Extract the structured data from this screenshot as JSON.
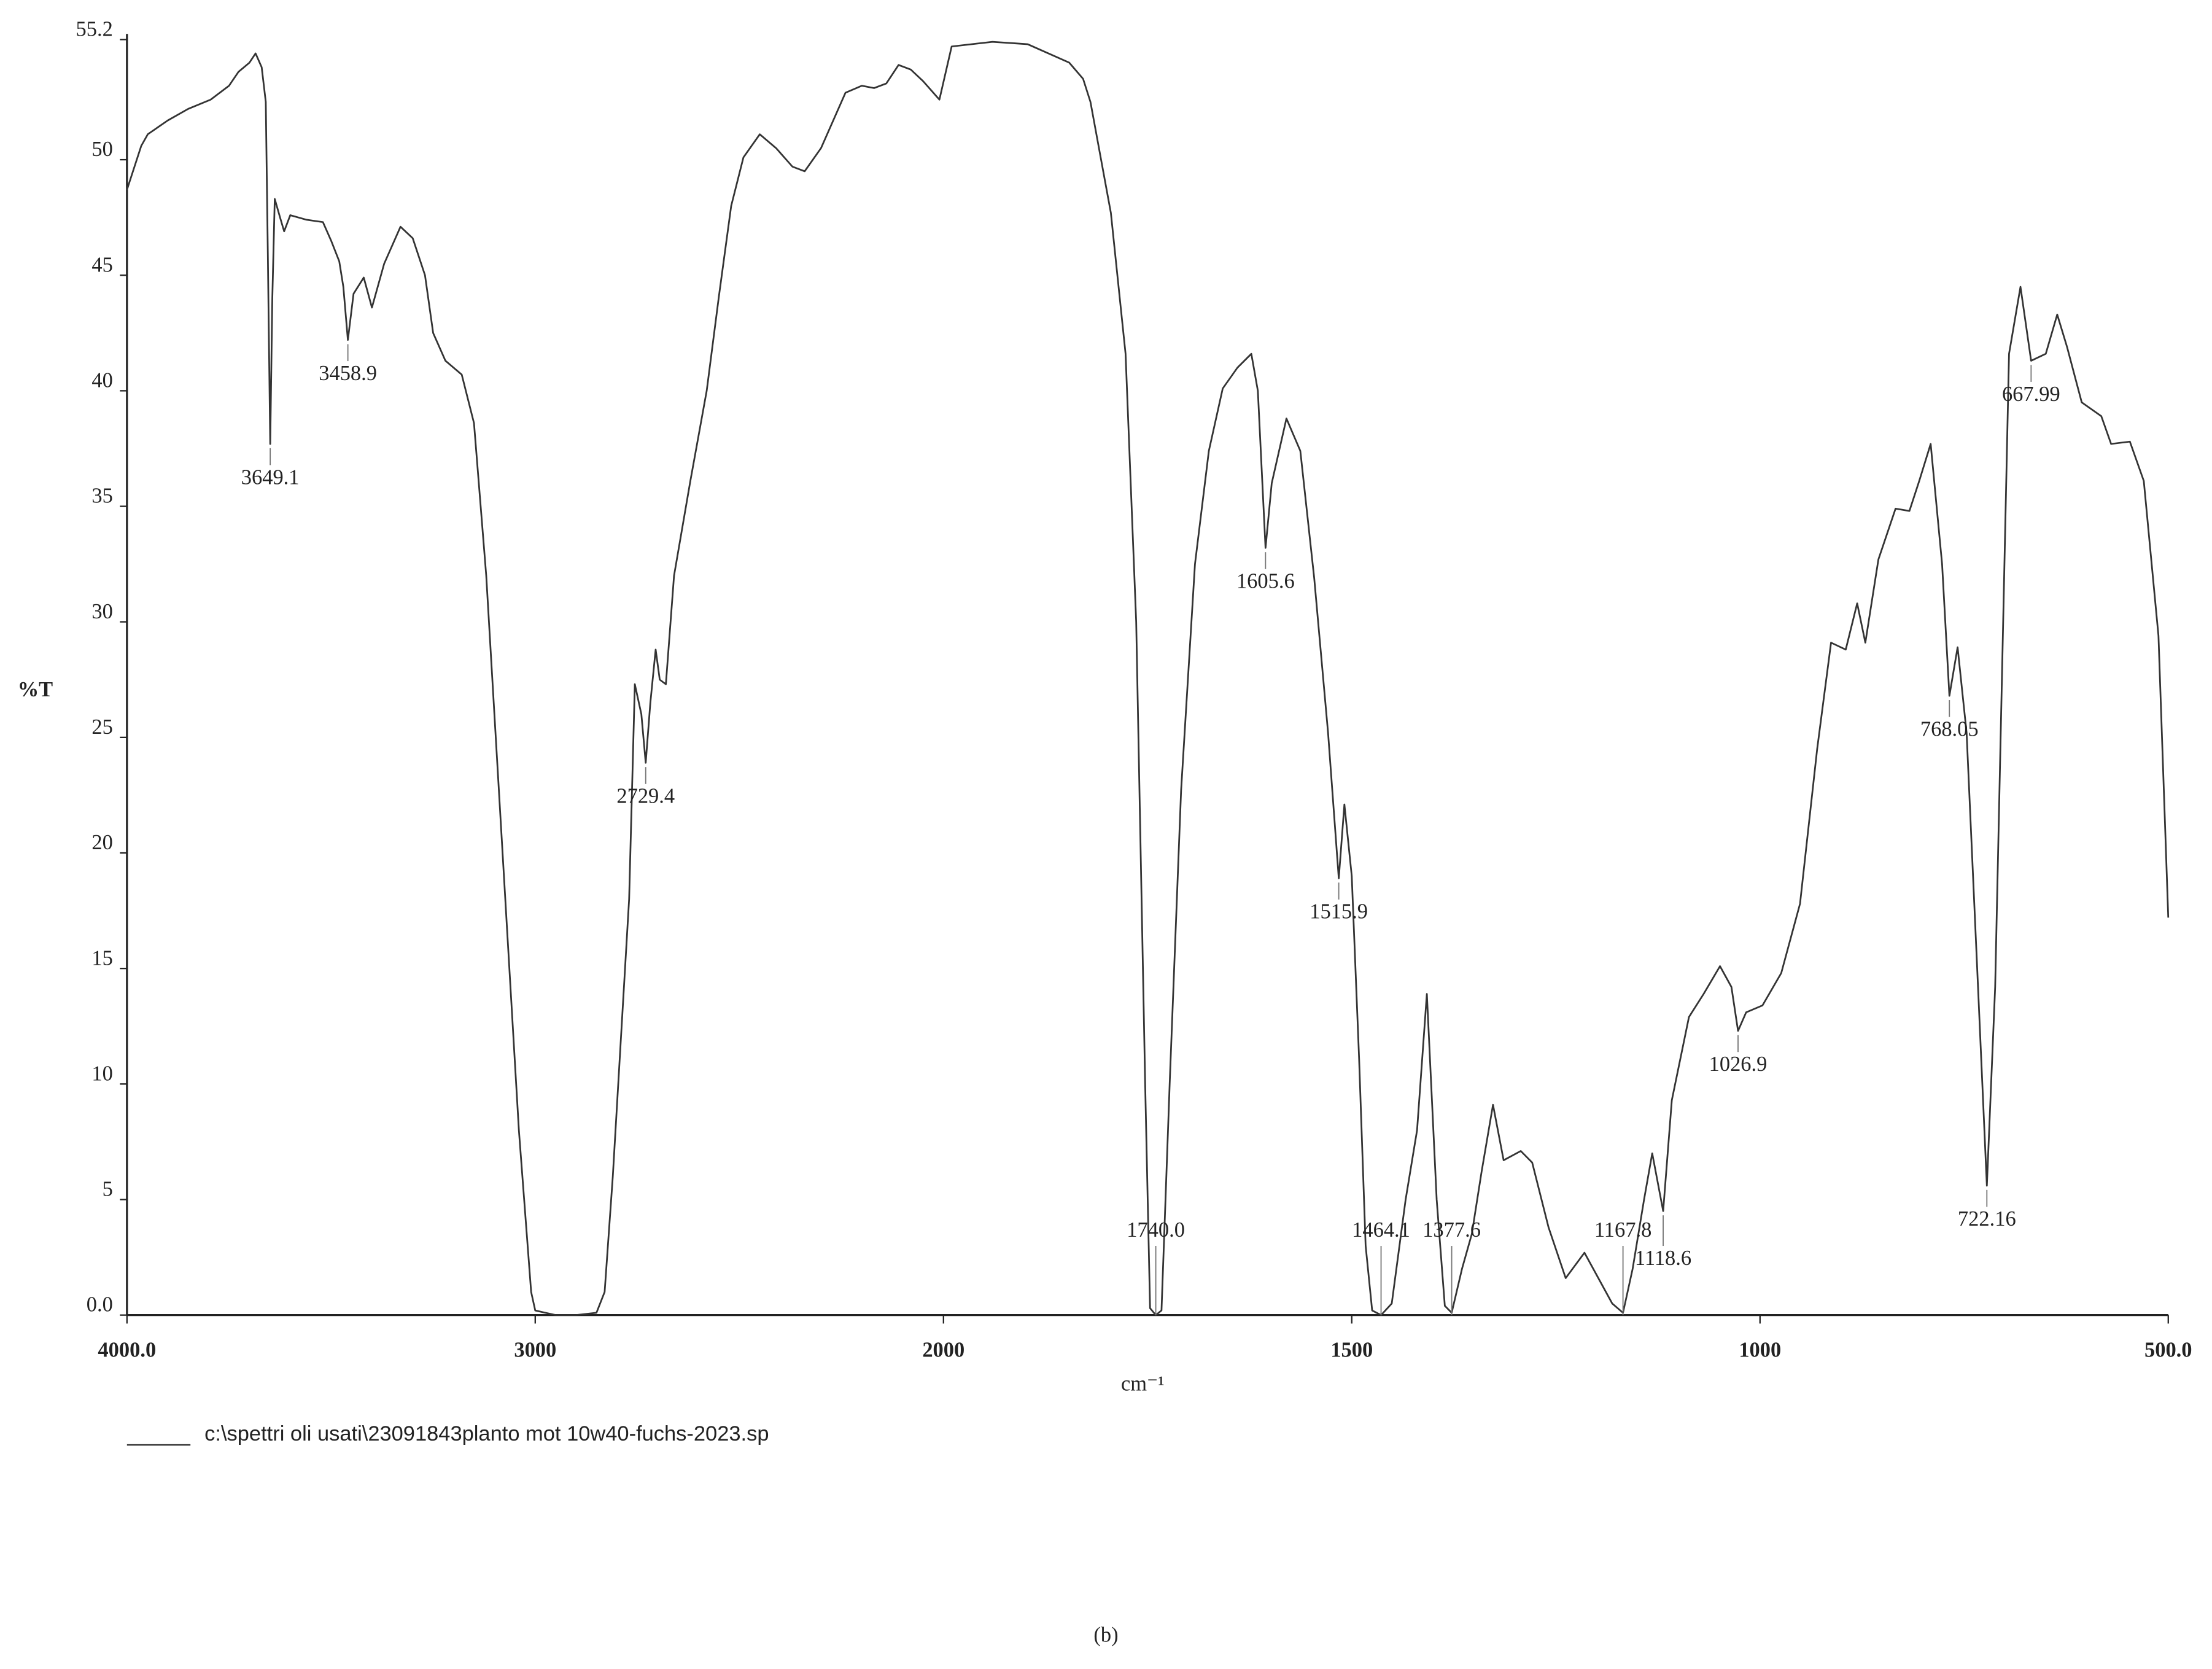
{
  "chart_data": {
    "type": "line",
    "y_label": "%T",
    "x_label": "cm⁻¹",
    "caption": "(b)",
    "xlim": [
      4000,
      500
    ],
    "ylim": [
      0,
      55.2
    ],
    "xticks": [
      {
        "value": 4000,
        "label": "4000.0"
      },
      3000,
      2000,
      1500,
      1000,
      {
        "value": 500,
        "label": "500.0"
      }
    ],
    "yticks": [
      {
        "value": 0,
        "label": "0.0"
      },
      5,
      10,
      15,
      20,
      25,
      30,
      35,
      40,
      45,
      50,
      55.2
    ],
    "peaks": [
      3649.1,
      3458.9,
      2729.4,
      {
        "value": 1740,
        "label": "1740.0"
      },
      1605.6,
      1515.9,
      1464.1,
      1377.6,
      1167.8,
      1118.6,
      1026.9,
      768.05,
      722.16,
      667.99
    ],
    "x": [
      4000,
      3965,
      3949,
      3900,
      3850,
      3795,
      3750,
      3727,
      3700,
      3685,
      3670,
      3660,
      3655,
      3649.1,
      3644,
      3638,
      3625,
      3615,
      3600,
      3560,
      3520,
      3500,
      3480,
      3470,
      3458.9,
      3445,
      3420,
      3400,
      3370,
      3330,
      3300,
      3270,
      3250,
      3220,
      3180,
      3150,
      3120,
      3080,
      3040,
      3010,
      3000,
      2950,
      2900,
      2850,
      2830,
      2810,
      2790,
      2770,
      2756,
      2740,
      2729.4,
      2718,
      2705,
      2695,
      2680,
      2660,
      2620,
      2580,
      2550,
      2520,
      2490,
      2450,
      2410,
      2370,
      2340,
      2300,
      2240,
      2200,
      2170,
      2140,
      2110,
      2080,
      2050,
      2030,
      2010,
      1990,
      1940,
      1897,
      1846,
      1829,
      1820,
      1795,
      1777,
      1764,
      1753,
      1747,
      1740,
      1733,
      1723,
      1709,
      1692,
      1675,
      1658,
      1640,
      1623,
      1615,
      1605.6,
      1598,
      1580,
      1563,
      1546,
      1529,
      1515.9,
      1509,
      1500,
      1491,
      1483,
      1475,
      1464.1,
      1451,
      1434,
      1420,
      1408,
      1396,
      1386,
      1377.6,
      1365,
      1353,
      1341,
      1327,
      1314,
      1293,
      1279,
      1259,
      1238,
      1215,
      1198,
      1181,
      1167.8,
      1156,
      1142,
      1132,
      1118.6,
      1108,
      1087,
      1069,
      1049,
      1035,
      1026.9,
      1017,
      997,
      974,
      951,
      930,
      913,
      895,
      881,
      871,
      855,
      834,
      817,
      805,
      791,
      777,
      768.05,
      758,
      747,
      733,
      722.16,
      712,
      695,
      681,
      667.99,
      650,
      636,
      624,
      606,
      582,
      570,
      547,
      530,
      512,
      500
    ],
    "series": [
      {
        "name": "c:\\spettri oli usati\\23091843planto mot 10w40-fuchs-2023.sp",
        "color": "#333333",
        "values": [
          48.7,
          50.6,
          51.1,
          51.7,
          52.2,
          52.6,
          53.2,
          53.8,
          54.2,
          54.6,
          54.0,
          52.5,
          46,
          37.7,
          44,
          48.3,
          47.5,
          46.9,
          47.6,
          47.4,
          47.3,
          46.5,
          45.6,
          44.5,
          42.2,
          44.2,
          44.9,
          43.6,
          45.5,
          47.1,
          46.6,
          45.0,
          42.5,
          41.3,
          40.7,
          38.6,
          32,
          20,
          8,
          1,
          0.2,
          0,
          0,
          0.1,
          1,
          6,
          12,
          18,
          27.3,
          26,
          23.9,
          26.5,
          28.8,
          27.5,
          27.3,
          32,
          36.1,
          40,
          44.1,
          48,
          50.1,
          51.1,
          50.5,
          49.7,
          49.5,
          50.5,
          52.9,
          53.2,
          53.1,
          53.3,
          54.1,
          53.9,
          53.4,
          53.0,
          52.6,
          54.9,
          55.1,
          55.0,
          54.2,
          53.5,
          52.5,
          47.7,
          41.6,
          30,
          10,
          0.3,
          0,
          0.2,
          10,
          22.7,
          32.5,
          37.4,
          40.1,
          41.0,
          41.6,
          40,
          33.2,
          36,
          38.8,
          37.4,
          31.9,
          25.2,
          18.9,
          22.1,
          19.0,
          11.1,
          3,
          0.2,
          0,
          0.5,
          5,
          8,
          13.9,
          5.0,
          0.4,
          0.1,
          2.0,
          3.5,
          6.2,
          9.1,
          6.7,
          7.1,
          6.6,
          3.8,
          1.6,
          2.7,
          1.6,
          0.5,
          0.1,
          2.0,
          5.0,
          7.0,
          4.5,
          9.3,
          12.9,
          13.9,
          15.1,
          14.2,
          12.3,
          13.1,
          13.4,
          14.8,
          17.8,
          24.5,
          29.1,
          28.8,
          30.8,
          29.1,
          32.7,
          34.9,
          34.8,
          36.1,
          37.7,
          32.5,
          26.8,
          28.9,
          25.2,
          14.2,
          5.6,
          14.2,
          41.6,
          44.5,
          41.3,
          41.6,
          43.3,
          41.9,
          39.5,
          38.9,
          37.7,
          37.8,
          36.1,
          29.4,
          17.2
        ]
      }
    ]
  }
}
